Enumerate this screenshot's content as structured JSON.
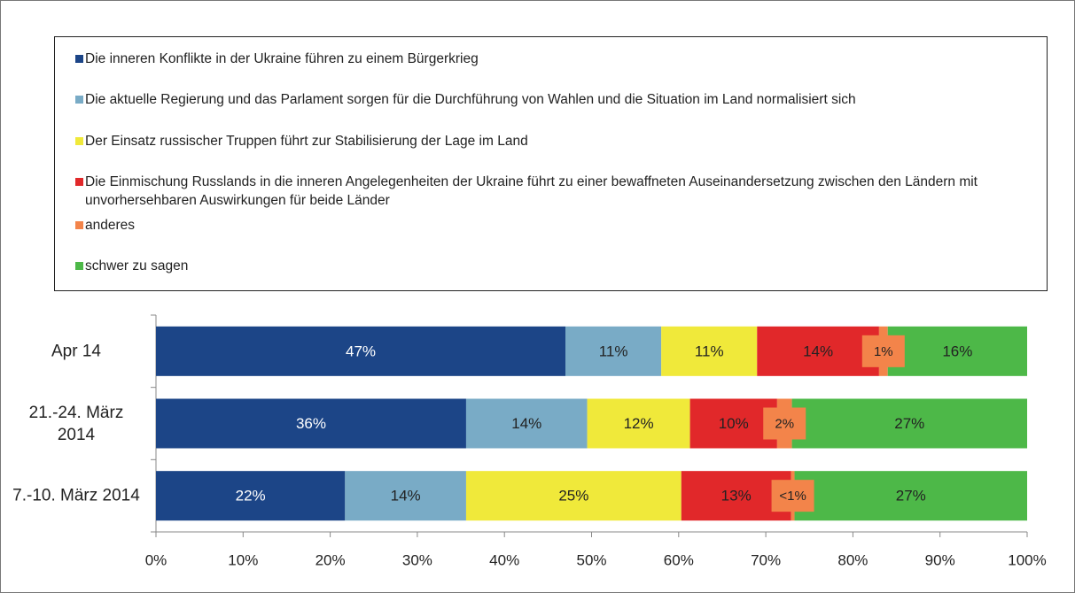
{
  "chart_data": {
    "type": "stacked_barh",
    "categories": [
      "Apr 14",
      "21.-24. März 2014",
      "7.-10. März 2014"
    ],
    "series": [
      {
        "name": "Die inneren Konflikte in der Ukraine führen zu einem Bürgerkrieg",
        "color": "#1c4587",
        "values": [
          47,
          35.6,
          21.7
        ],
        "value_labels": [
          "47%",
          "36%",
          "22%"
        ]
      },
      {
        "name": "Die aktuelle Regierung und das Parlament sorgen für die Durchführung von Wahlen und die Situation im Land normalisiert sich",
        "color": "#79abc6",
        "values": [
          11,
          13.9,
          13.9
        ],
        "value_labels": [
          "11%",
          "14%",
          "14%"
        ]
      },
      {
        "name": "Der Einsatz russischer Truppen führt zur Stabilisierung der Lage im Land",
        "color": "#f0e93a",
        "values": [
          11,
          11.8,
          24.7
        ],
        "value_labels": [
          "11%",
          "12%",
          "25%"
        ]
      },
      {
        "name": "Die Einmischung Russlands in die inneren Angelegenheiten der Ukraine führt zu einer bewaffneten Auseinandersetzung zwischen den Ländern mit unvorhersehbaren Auswirkungen für beide Länder",
        "color": "#e1282a",
        "values": [
          14,
          10.0,
          12.6
        ],
        "value_labels": [
          "14%",
          "10%",
          "13%"
        ]
      },
      {
        "name": "anderes",
        "color": "#f3844a",
        "values": [
          1,
          1.7,
          0.4
        ],
        "value_labels": [
          "1%",
          "2%",
          "<1%"
        ]
      },
      {
        "name": "schwer zu sagen",
        "color": "#4db848",
        "values": [
          16,
          27.0,
          26.7
        ],
        "value_labels": [
          "16%",
          "27%",
          "27%"
        ]
      }
    ],
    "xlim": [
      0,
      100
    ],
    "xticks": [
      {
        "value": 0,
        "label": "0%"
      },
      {
        "value": 10,
        "label": "10%"
      },
      {
        "value": 20,
        "label": "20%"
      },
      {
        "value": 30,
        "label": "30%"
      },
      {
        "value": 40,
        "label": "40%"
      },
      {
        "value": 50,
        "label": "50%"
      },
      {
        "value": 60,
        "label": "60%"
      },
      {
        "value": 70,
        "label": "70%"
      },
      {
        "value": 80,
        "label": "80%"
      },
      {
        "value": 90,
        "label": "90%"
      },
      {
        "value": 100,
        "label": "100%"
      }
    ],
    "legend": "top"
  }
}
